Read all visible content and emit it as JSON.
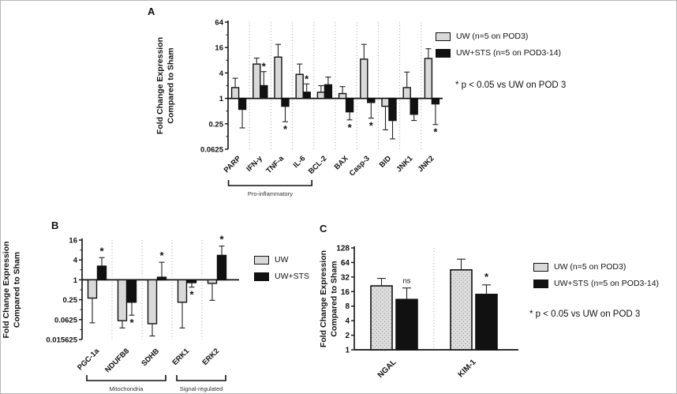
{
  "figure": {
    "colors": {
      "uw_fill": "#d9d9d9",
      "uw_sts_fill": "#111111",
      "outline": "#111111",
      "separator": "#b0b0b0"
    }
  },
  "notes": {
    "a": "* p < 0.05 vs UW on POD 3",
    "c": "* p < 0.05 vs UW on POD 3"
  },
  "chart_data": [
    {
      "panel": "A",
      "type": "bar",
      "scale": "log2",
      "ylabel_lines": [
        "Fold Change Expression",
        "Compared to Sham"
      ],
      "ylim": [
        0.0625,
        64
      ],
      "baseline": 1,
      "yticks": [
        0.0625,
        0.25,
        1,
        4,
        16,
        64
      ],
      "ytick_labels": [
        "0.0625",
        "0.25",
        "1",
        "4",
        "16",
        "64"
      ],
      "categories": [
        "PARP",
        "IFN-y",
        "TNF-a",
        "IL-6",
        "BCL-2",
        "BAX",
        "Casp-3",
        "BID",
        "JNK1",
        "JNK2"
      ],
      "series": [
        {
          "name": "UW (n=5 on POD3)",
          "style": "uw",
          "values": [
            1.8,
            6.5,
            9.5,
            3.7,
            1.4,
            1.3,
            8.5,
            0.65,
            1.8,
            8.8
          ],
          "err_tip": [
            3.0,
            9.0,
            19,
            6.5,
            2.0,
            1.9,
            19,
            0.18,
            4.2,
            15
          ],
          "sig": [
            "",
            "",
            "",
            "",
            "",
            "",
            "",
            "",
            "",
            ""
          ]
        },
        {
          "name": "UW+STS (n=5 on POD3-14)",
          "style": "uw_sts",
          "values": [
            0.55,
            2.0,
            0.65,
            1.4,
            2.1,
            0.48,
            0.8,
            0.3,
            0.42,
            0.74
          ],
          "err_tip": [
            0.2,
            4.3,
            0.28,
            2.2,
            3.2,
            0.31,
            0.34,
            0.11,
            0.3,
            0.24
          ],
          "sig": [
            "",
            "*",
            "*",
            "*",
            "",
            "*",
            "*",
            "",
            "",
            "*"
          ]
        }
      ],
      "groups": [
        {
          "label": "Pro-inflammatory",
          "from": 0,
          "to": 3
        }
      ]
    },
    {
      "panel": "B",
      "type": "bar",
      "scale": "log2",
      "ylabel_lines": [
        "Fold Change Expression",
        "Compared to Sham"
      ],
      "ylim": [
        0.015625,
        16
      ],
      "baseline": 1,
      "yticks": [
        0.015625,
        0.0625,
        0.25,
        1,
        4,
        16
      ],
      "ytick_labels": [
        "0.015625",
        "0.0625",
        "0.25",
        "1",
        "4",
        "16"
      ],
      "categories": [
        "PGC-1a",
        "NDUFB8",
        "SDHB",
        "ERK1",
        "ERK2"
      ],
      "series": [
        {
          "name": "UW",
          "style": "uw",
          "values": [
            0.28,
            0.058,
            0.047,
            0.21,
            0.78
          ],
          "err_tip": [
            0.05,
            0.035,
            0.02,
            0.035,
            0.24
          ],
          "sig": [
            "",
            "",
            "",
            "",
            ""
          ]
        },
        {
          "name": "UW+STS",
          "style": "uw_sts",
          "values": [
            2.6,
            0.21,
            1.2,
            0.82,
            5.5
          ],
          "err_tip": [
            4.7,
            0.085,
            3.4,
            0.6,
            10.5
          ],
          "sig": [
            "*",
            "*",
            "*",
            "*",
            "*"
          ]
        }
      ],
      "groups": [
        {
          "label": "Mitochondria",
          "from": 0,
          "to": 2
        },
        {
          "label": "Signal-regulated",
          "from": 3,
          "to": 4
        }
      ]
    },
    {
      "panel": "C",
      "type": "bar",
      "scale": "log2",
      "ylabel_lines": [
        "Fold Change Expression",
        "Compared to Sham"
      ],
      "ylim": [
        1,
        128
      ],
      "baseline": 1,
      "yticks": [
        1,
        2,
        4,
        8,
        16,
        32,
        64,
        128
      ],
      "ytick_labels": [
        "1",
        "2",
        "4",
        "8",
        "16",
        "32",
        "64",
        "128"
      ],
      "categories": [
        "NGAL",
        "KIM-1"
      ],
      "series": [
        {
          "name": "UW (n=5 on POD3)",
          "style": "uw_dotted",
          "values": [
            21,
            45
          ],
          "err_tip": [
            30,
            75
          ],
          "sig": [
            "",
            ""
          ]
        },
        {
          "name": "UW+STS (n=5 on POD3-14)",
          "style": "uw_sts",
          "values": [
            11,
            14
          ],
          "err_tip": [
            19,
            22
          ],
          "sig": [
            "ns",
            "*"
          ]
        }
      ],
      "groups": []
    }
  ]
}
